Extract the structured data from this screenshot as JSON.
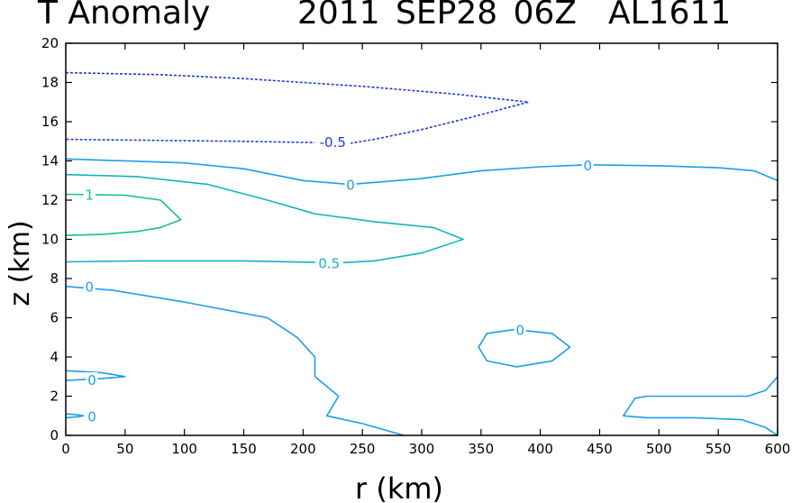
{
  "chart_data": {
    "type": "contour",
    "title_left": "T Anomaly",
    "title_right": "2011 SEP28 06Z  AL1611",
    "xlabel": "r (km)",
    "ylabel": "z (km)",
    "xlim": [
      0,
      600
    ],
    "ylim": [
      0,
      20
    ],
    "xticks": [
      0,
      50,
      100,
      150,
      200,
      250,
      300,
      350,
      400,
      450,
      500,
      550,
      600
    ],
    "yticks": [
      0,
      2,
      4,
      6,
      8,
      10,
      12,
      14,
      16,
      18,
      20
    ],
    "colors": {
      "neg05": "#1e3cd8",
      "zero": "#1c9ee6",
      "pos05": "#14b4c0",
      "pos1": "#16c28c"
    },
    "contours": [
      {
        "level": "-0.5",
        "color_key": "neg05",
        "dashed": true,
        "points": [
          [
            0,
            18.5
          ],
          [
            80,
            18.4
          ],
          [
            150,
            18.2
          ],
          [
            250,
            17.8
          ],
          [
            330,
            17.4
          ],
          [
            390,
            17.0
          ],
          [
            340,
            16.2
          ],
          [
            300,
            15.6
          ],
          [
            260,
            15.1
          ],
          [
            240,
            14.9
          ],
          [
            150,
            15.0
          ],
          [
            0,
            15.1
          ]
        ],
        "labels": [
          {
            "text": "-0.5",
            "at": [
              225,
              15.0
            ]
          }
        ]
      },
      {
        "level": "0",
        "color_key": "zero",
        "dashed": false,
        "points": [
          [
            0,
            14.1
          ],
          [
            100,
            13.9
          ],
          [
            150,
            13.6
          ],
          [
            200,
            13.0
          ],
          [
            240,
            12.8
          ],
          [
            300,
            13.1
          ],
          [
            350,
            13.5
          ],
          [
            400,
            13.7
          ],
          [
            440,
            13.8
          ],
          [
            500,
            13.75
          ],
          [
            550,
            13.65
          ],
          [
            580,
            13.5
          ],
          [
            600,
            13.0
          ]
        ],
        "labels": [
          {
            "text": "0",
            "at": [
              240,
              12.8
            ]
          },
          {
            "text": "0",
            "at": [
              440,
              13.8
            ]
          }
        ]
      },
      {
        "level": "0.5",
        "color_key": "pos05",
        "dashed": false,
        "points": [
          [
            0,
            13.3
          ],
          [
            60,
            13.2
          ],
          [
            120,
            12.8
          ],
          [
            170,
            12.0
          ],
          [
            210,
            11.3
          ],
          [
            260,
            10.9
          ],
          [
            310,
            10.6
          ],
          [
            335,
            10.0
          ],
          [
            300,
            9.3
          ],
          [
            260,
            8.9
          ],
          [
            230,
            8.8
          ],
          [
            150,
            8.9
          ],
          [
            60,
            8.9
          ],
          [
            0,
            8.85
          ]
        ],
        "labels": [
          {
            "text": "0.5",
            "at": [
              222,
              8.8
            ]
          }
        ]
      },
      {
        "level": "1",
        "color_key": "pos1",
        "dashed": false,
        "points": [
          [
            0,
            12.3
          ],
          [
            50,
            12.25
          ],
          [
            80,
            12.0
          ],
          [
            97,
            11.0
          ],
          [
            80,
            10.6
          ],
          [
            60,
            10.4
          ],
          [
            30,
            10.25
          ],
          [
            0,
            10.2
          ]
        ],
        "labels": [
          {
            "text": "1",
            "at": [
              20,
              12.3
            ]
          }
        ]
      },
      {
        "level": "0",
        "color_key": "zero",
        "dashed": false,
        "points": [
          [
            0,
            7.6
          ],
          [
            40,
            7.4
          ],
          [
            100,
            6.8
          ],
          [
            170,
            6.0
          ],
          [
            195,
            5.0
          ],
          [
            210,
            4.0
          ],
          [
            210,
            3.0
          ],
          [
            230,
            2.0
          ],
          [
            220,
            1.0
          ],
          [
            250,
            0.6
          ],
          [
            285,
            0.0
          ]
        ],
        "labels": [
          {
            "text": "0",
            "at": [
              20,
              7.6
            ]
          }
        ]
      },
      {
        "level": "0",
        "color_key": "zero",
        "dashed": false,
        "points": [
          [
            378,
            5.4
          ],
          [
            410,
            5.2
          ],
          [
            425,
            4.5
          ],
          [
            410,
            3.8
          ],
          [
            380,
            3.5
          ],
          [
            355,
            3.8
          ],
          [
            348,
            4.5
          ],
          [
            355,
            5.2
          ],
          [
            378,
            5.4
          ]
        ],
        "labels": [
          {
            "text": "0",
            "at": [
              383,
              5.4
            ]
          }
        ]
      },
      {
        "level": "0",
        "color_key": "zero",
        "dashed": false,
        "points": [
          [
            0,
            3.3
          ],
          [
            30,
            3.2
          ],
          [
            50,
            3.0
          ],
          [
            30,
            2.9
          ],
          [
            0,
            2.8
          ]
        ],
        "labels": [
          {
            "text": "0",
            "at": [
              22,
              2.85
            ]
          }
        ]
      },
      {
        "level": "0",
        "color_key": "zero",
        "dashed": false,
        "points": [
          [
            0,
            1.1
          ],
          [
            10,
            1.05
          ],
          [
            15,
            1.0
          ],
          [
            10,
            0.95
          ],
          [
            0,
            0.9
          ]
        ],
        "labels": [
          {
            "text": "0",
            "at": [
              22,
              1.0
            ]
          }
        ]
      },
      {
        "level": "0",
        "color_key": "zero",
        "dashed": false,
        "points": [
          [
            600,
            3.0
          ],
          [
            590,
            2.3
          ],
          [
            575,
            2.0
          ],
          [
            550,
            2.0
          ],
          [
            490,
            2.0
          ],
          [
            480,
            1.9
          ],
          [
            470,
            1.0
          ],
          [
            490,
            0.9
          ],
          [
            530,
            0.9
          ],
          [
            570,
            0.8
          ],
          [
            590,
            0.4
          ],
          [
            600,
            0.0
          ]
        ],
        "labels": []
      }
    ]
  }
}
